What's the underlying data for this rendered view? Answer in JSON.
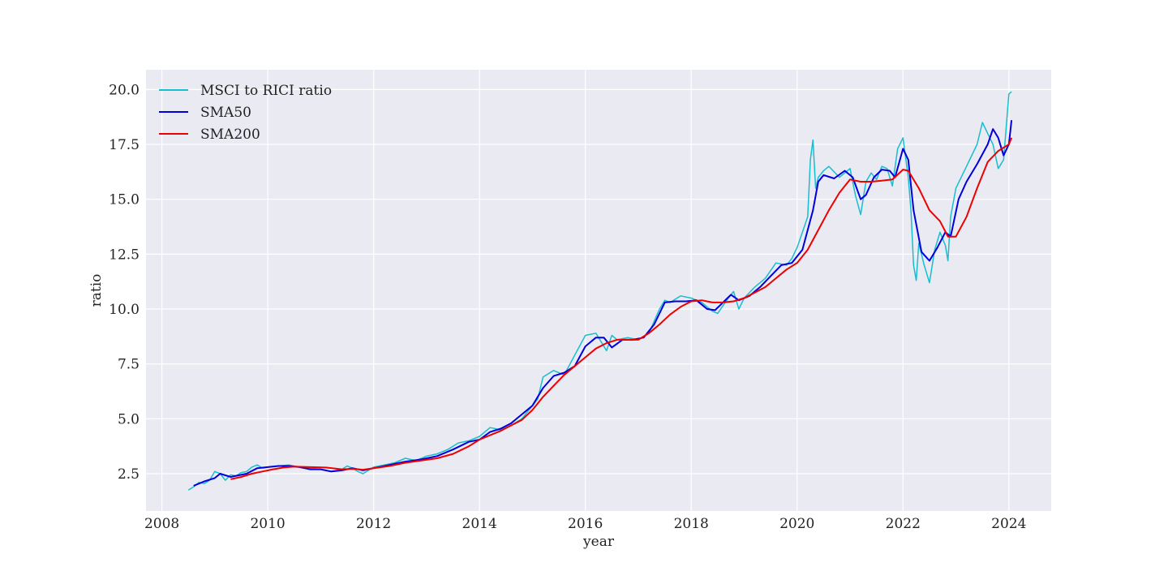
{
  "chart_data": {
    "type": "line",
    "title": "",
    "xlabel": "year",
    "ylabel": "ratio",
    "xlim": [
      2007.7,
      2024.8
    ],
    "ylim": [
      0.8,
      20.9
    ],
    "x_ticks": [
      2008,
      2010,
      2012,
      2014,
      2016,
      2018,
      2020,
      2022,
      2024
    ],
    "x_tick_labels": [
      "2008",
      "2010",
      "2012",
      "2014",
      "2016",
      "2018",
      "2020",
      "2022",
      "2024"
    ],
    "y_ticks": [
      2.5,
      5.0,
      7.5,
      10.0,
      12.5,
      15.0,
      17.5,
      20.0
    ],
    "y_tick_labels": [
      "2.5",
      "5.0",
      "7.5",
      "10.0",
      "12.5",
      "15.0",
      "17.5",
      "20.0"
    ],
    "grid": true,
    "legend": "top-left",
    "series": [
      {
        "name": "MSCI to RICI ratio",
        "color": "#17becf",
        "x": [
          2008.5,
          2008.6,
          2008.7,
          2008.8,
          2008.9,
          2009.0,
          2009.1,
          2009.2,
          2009.3,
          2009.4,
          2009.5,
          2009.6,
          2009.7,
          2009.8,
          2009.9,
          2010.0,
          2010.2,
          2010.4,
          2010.6,
          2010.8,
          2011.0,
          2011.2,
          2011.4,
          2011.5,
          2011.6,
          2011.7,
          2011.8,
          2012.0,
          2012.2,
          2012.4,
          2012.6,
          2012.8,
          2013.0,
          2013.2,
          2013.4,
          2013.6,
          2013.8,
          2014.0,
          2014.2,
          2014.4,
          2014.6,
          2014.8,
          2015.0,
          2015.1,
          2015.2,
          2015.4,
          2015.6,
          2015.8,
          2016.0,
          2016.2,
          2016.4,
          2016.5,
          2016.6,
          2016.8,
          2017.0,
          2017.2,
          2017.4,
          2017.5,
          2017.6,
          2017.8,
          2018.0,
          2018.2,
          2018.4,
          2018.5,
          2018.7,
          2018.8,
          2018.9,
          2019.0,
          2019.2,
          2019.4,
          2019.6,
          2019.8,
          2019.9,
          2020.0,
          2020.1,
          2020.2,
          2020.25,
          2020.3,
          2020.35,
          2020.4,
          2020.5,
          2020.6,
          2020.8,
          2021.0,
          2021.1,
          2021.2,
          2021.3,
          2021.4,
          2021.5,
          2021.6,
          2021.7,
          2021.8,
          2021.9,
          2022.0,
          2022.1,
          2022.15,
          2022.2,
          2022.25,
          2022.3,
          2022.35,
          2022.4,
          2022.5,
          2022.6,
          2022.7,
          2022.8,
          2022.85,
          2022.9,
          2023.0,
          2023.2,
          2023.4,
          2023.5,
          2023.6,
          2023.7,
          2023.8,
          2023.9,
          2024.0,
          2024.05
        ],
        "y": [
          1.75,
          1.9,
          2.1,
          2.05,
          2.2,
          2.6,
          2.5,
          2.2,
          2.45,
          2.4,
          2.55,
          2.6,
          2.8,
          2.9,
          2.75,
          2.8,
          2.85,
          2.9,
          2.8,
          2.75,
          2.7,
          2.6,
          2.7,
          2.85,
          2.75,
          2.6,
          2.5,
          2.8,
          2.9,
          3.0,
          3.2,
          3.1,
          3.3,
          3.4,
          3.6,
          3.9,
          4.0,
          4.2,
          4.6,
          4.5,
          4.7,
          5.0,
          5.6,
          5.9,
          6.9,
          7.2,
          7.0,
          7.9,
          8.8,
          8.9,
          8.1,
          8.8,
          8.6,
          8.7,
          8.6,
          8.9,
          10.0,
          10.4,
          10.3,
          10.6,
          10.5,
          10.3,
          9.9,
          9.8,
          10.5,
          10.8,
          10.0,
          10.5,
          11.0,
          11.4,
          12.1,
          12.0,
          12.3,
          12.8,
          13.5,
          14.2,
          16.8,
          17.7,
          15.5,
          16.0,
          16.3,
          16.5,
          16.0,
          16.4,
          15.2,
          14.3,
          15.8,
          16.2,
          15.9,
          16.5,
          16.4,
          15.6,
          17.3,
          17.8,
          16.0,
          14.5,
          12.0,
          11.3,
          13.0,
          12.5,
          12.0,
          11.2,
          12.7,
          13.5,
          12.9,
          12.2,
          14.2,
          15.5,
          16.5,
          17.5,
          18.5,
          18.0,
          17.5,
          16.4,
          16.8,
          19.8,
          19.9
        ]
      },
      {
        "name": "SMA50",
        "color": "#0000dd",
        "x": [
          2008.6,
          2008.8,
          2009.0,
          2009.1,
          2009.3,
          2009.6,
          2009.8,
          2010.0,
          2010.2,
          2010.4,
          2010.6,
          2010.8,
          2011.0,
          2011.2,
          2011.4,
          2011.6,
          2011.8,
          2012.0,
          2012.3,
          2012.6,
          2012.9,
          2013.2,
          2013.5,
          2013.8,
          2014.0,
          2014.2,
          2014.4,
          2014.6,
          2014.8,
          2015.0,
          2015.2,
          2015.4,
          2015.6,
          2015.8,
          2016.0,
          2016.2,
          2016.35,
          2016.5,
          2016.7,
          2016.9,
          2017.1,
          2017.3,
          2017.5,
          2017.7,
          2017.9,
          2018.1,
          2018.3,
          2018.45,
          2018.6,
          2018.75,
          2018.9,
          2019.1,
          2019.3,
          2019.5,
          2019.7,
          2019.9,
          2020.1,
          2020.3,
          2020.4,
          2020.5,
          2020.7,
          2020.9,
          2021.05,
          2021.2,
          2021.3,
          2021.45,
          2021.6,
          2021.75,
          2021.85,
          2022.0,
          2022.1,
          2022.2,
          2022.35,
          2022.5,
          2022.65,
          2022.8,
          2022.9,
          2023.05,
          2023.2,
          2023.4,
          2023.6,
          2023.7,
          2023.8,
          2023.9,
          2024.0,
          2024.05
        ],
        "y": [
          1.95,
          2.15,
          2.3,
          2.5,
          2.35,
          2.5,
          2.75,
          2.8,
          2.85,
          2.85,
          2.8,
          2.7,
          2.7,
          2.6,
          2.65,
          2.75,
          2.65,
          2.75,
          2.9,
          3.05,
          3.15,
          3.3,
          3.6,
          3.95,
          4.05,
          4.4,
          4.55,
          4.8,
          5.2,
          5.6,
          6.4,
          6.95,
          7.1,
          7.4,
          8.3,
          8.7,
          8.7,
          8.25,
          8.6,
          8.6,
          8.7,
          9.3,
          10.3,
          10.35,
          10.35,
          10.4,
          10.0,
          9.95,
          10.3,
          10.65,
          10.4,
          10.6,
          11.0,
          11.5,
          12.0,
          12.1,
          12.7,
          14.5,
          15.8,
          16.1,
          15.95,
          16.3,
          16.0,
          15.0,
          15.2,
          16.0,
          16.35,
          16.3,
          16.0,
          17.3,
          16.8,
          14.5,
          12.6,
          12.2,
          12.8,
          13.5,
          13.3,
          15.0,
          15.8,
          16.6,
          17.5,
          18.2,
          17.8,
          17.0,
          17.5,
          18.6
        ]
      },
      {
        "name": "SMA200",
        "color": "#ee0000",
        "x": [
          2009.3,
          2009.5,
          2009.7,
          2009.9,
          2010.1,
          2010.3,
          2010.5,
          2010.8,
          2011.1,
          2011.4,
          2011.6,
          2011.8,
          2012.0,
          2012.3,
          2012.6,
          2012.9,
          2013.2,
          2013.5,
          2013.8,
          2014.0,
          2014.2,
          2014.4,
          2014.6,
          2014.8,
          2015.0,
          2015.2,
          2015.4,
          2015.6,
          2015.8,
          2016.0,
          2016.2,
          2016.4,
          2016.6,
          2016.8,
          2017.0,
          2017.2,
          2017.4,
          2017.6,
          2017.8,
          2018.0,
          2018.2,
          2018.4,
          2018.6,
          2018.8,
          2019.0,
          2019.2,
          2019.4,
          2019.6,
          2019.8,
          2020.0,
          2020.2,
          2020.4,
          2020.6,
          2020.8,
          2021.0,
          2021.2,
          2021.4,
          2021.6,
          2021.8,
          2022.0,
          2022.1,
          2022.3,
          2022.5,
          2022.7,
          2022.85,
          2023.0,
          2023.2,
          2023.4,
          2023.6,
          2023.8,
          2024.0,
          2024.05
        ],
        "y": [
          2.25,
          2.35,
          2.5,
          2.6,
          2.7,
          2.78,
          2.82,
          2.8,
          2.78,
          2.7,
          2.72,
          2.68,
          2.75,
          2.85,
          3.0,
          3.1,
          3.2,
          3.4,
          3.75,
          4.05,
          4.25,
          4.45,
          4.7,
          4.95,
          5.4,
          6.0,
          6.5,
          7.0,
          7.4,
          7.8,
          8.2,
          8.45,
          8.6,
          8.6,
          8.6,
          8.9,
          9.3,
          9.75,
          10.1,
          10.35,
          10.4,
          10.3,
          10.3,
          10.35,
          10.5,
          10.75,
          11.0,
          11.4,
          11.8,
          12.1,
          12.7,
          13.6,
          14.5,
          15.3,
          15.9,
          15.8,
          15.8,
          15.85,
          15.9,
          16.35,
          16.3,
          15.5,
          14.5,
          14.0,
          13.3,
          13.3,
          14.2,
          15.5,
          16.7,
          17.2,
          17.5,
          17.8
        ]
      }
    ]
  }
}
